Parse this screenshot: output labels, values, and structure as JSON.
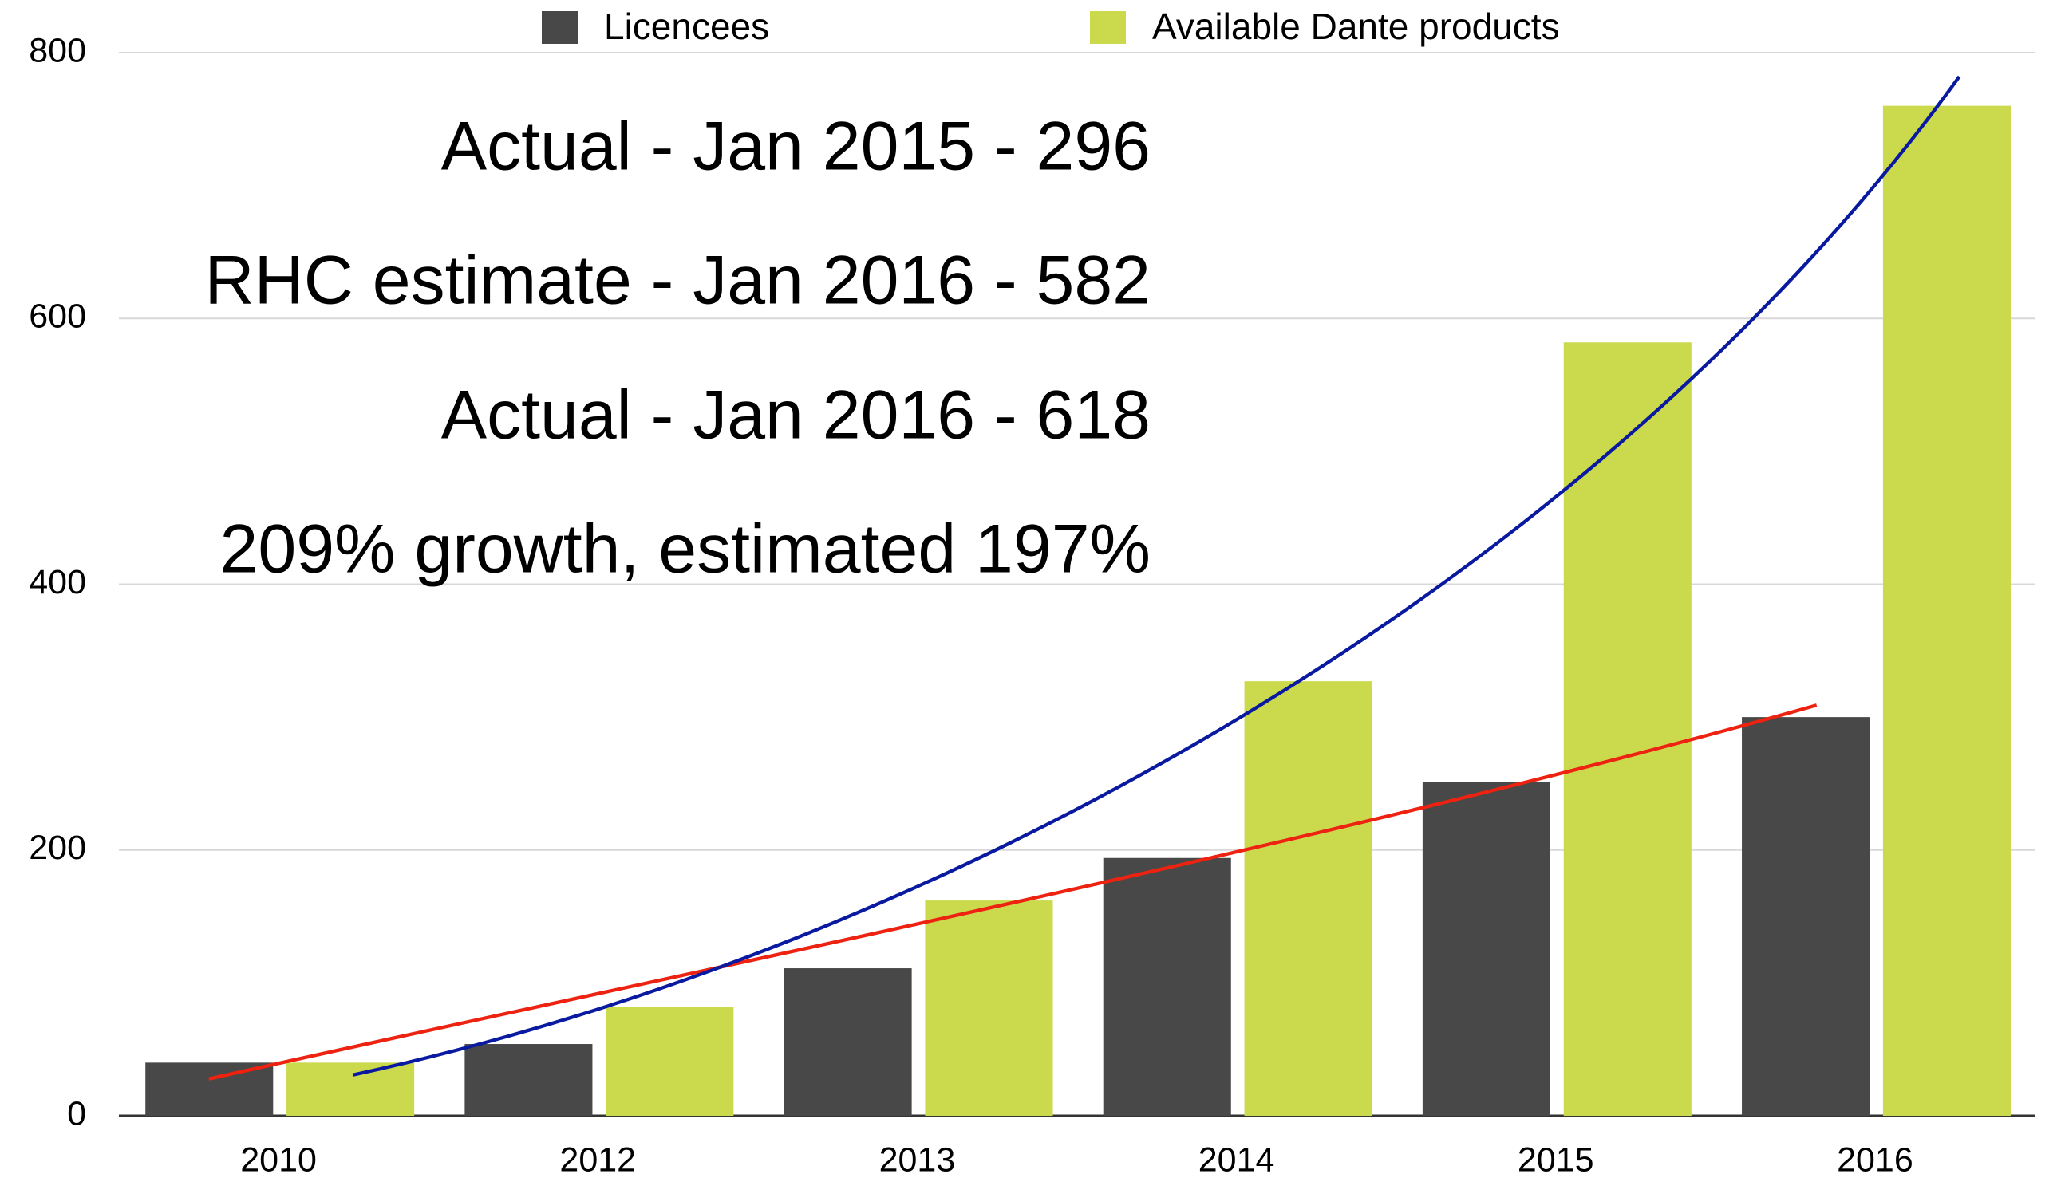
{
  "chart_data": {
    "type": "bar",
    "categories": [
      "2010",
      "2012",
      "2013",
      "2014",
      "2015",
      "2016"
    ],
    "series": [
      {
        "name": "Licencees",
        "color": "#484848",
        "values": [
          40,
          54,
          111,
          194,
          251,
          300
        ]
      },
      {
        "name": "Available Dante products",
        "color": "#cbd94d",
        "values": [
          40,
          82,
          162,
          327,
          582,
          760
        ]
      }
    ],
    "ylim": [
      0,
      800
    ],
    "yticks": [
      0,
      200,
      400,
      600,
      800
    ],
    "grid": true,
    "annotations": [
      "Actual - Jan 2015 - 296",
      "RHC estimate - Jan 2016 - 582",
      "Actual - Jan 2016 - 618",
      "209% growth, estimated 197%"
    ]
  }
}
